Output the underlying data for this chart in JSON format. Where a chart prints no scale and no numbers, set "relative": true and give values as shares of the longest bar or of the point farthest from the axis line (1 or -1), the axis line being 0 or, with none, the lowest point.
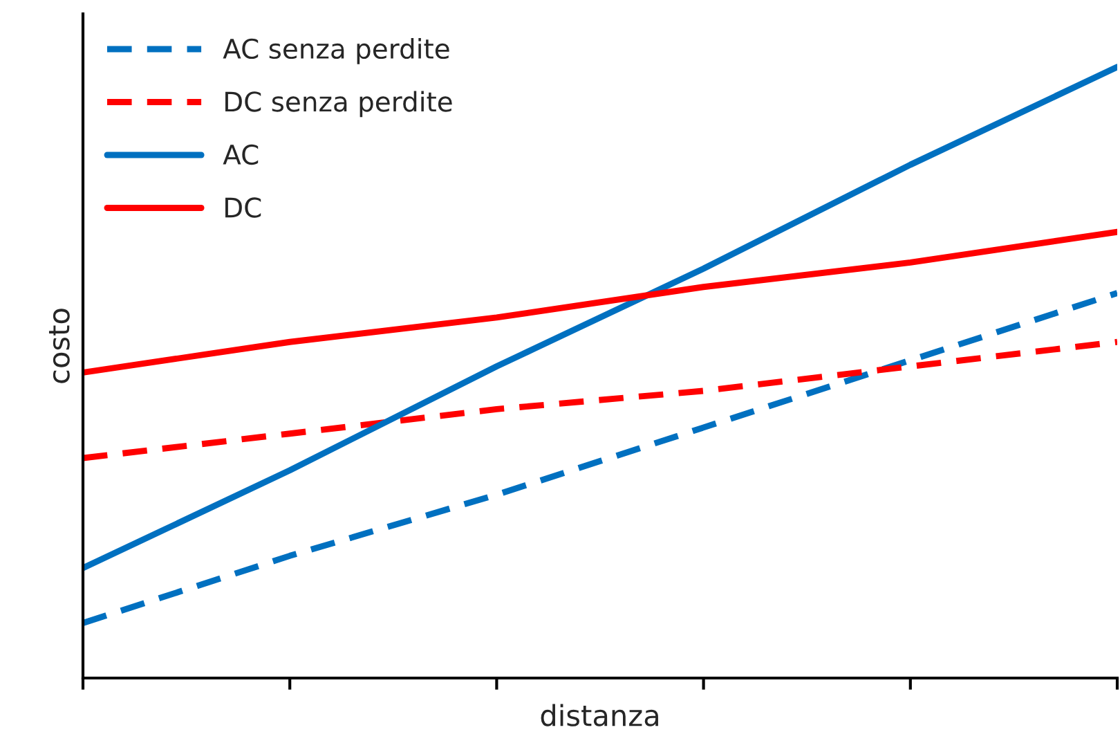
{
  "chart_data": {
    "type": "line",
    "relative": true,
    "xlabel": "distanza",
    "ylabel": "costo",
    "categories": [
      null,
      null,
      null,
      null,
      null,
      null
    ],
    "series": [
      {
        "name": "AC senza perdite",
        "color": "#0070c0",
        "line_style": "dashed",
        "values": [
          0.09,
          0.2,
          0.3,
          0.41,
          0.52,
          0.63
        ]
      },
      {
        "name": "DC senza perdite",
        "color": "#ff0000",
        "line_style": "dashed",
        "values": [
          0.36,
          0.4,
          0.44,
          0.47,
          0.51,
          0.55
        ]
      },
      {
        "name": "AC",
        "color": "#0070c0",
        "line_style": "solid",
        "values": [
          0.18,
          0.34,
          0.51,
          0.67,
          0.84,
          1.0
        ]
      },
      {
        "name": "DC",
        "color": "#ff0000",
        "line_style": "solid",
        "values": [
          0.5,
          0.55,
          0.59,
          0.64,
          0.68,
          0.73
        ]
      }
    ],
    "grid": false,
    "legend": "top left",
    "marker": "none"
  }
}
